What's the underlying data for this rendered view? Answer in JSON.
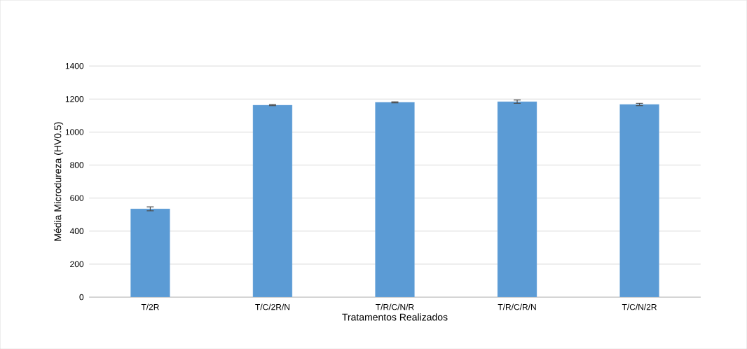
{
  "chart_data": {
    "type": "bar",
    "xlabel": "Tratamentos Realizados",
    "ylabel": "Média Microdureza (HV0.5)",
    "categories": [
      "T/2R",
      "T/C/2R/N",
      "T/R/C/N/R",
      "T/R/C/R/N",
      "T/C/N/2R"
    ],
    "values": [
      535,
      1163,
      1180,
      1184,
      1167
    ],
    "errors": [
      12,
      3,
      3,
      10,
      7
    ],
    "color": "#5b9bd5",
    "ylim": [
      0,
      1400
    ],
    "yticks": [
      0,
      200,
      400,
      600,
      800,
      1000,
      1200,
      1400
    ],
    "grid": "y"
  }
}
